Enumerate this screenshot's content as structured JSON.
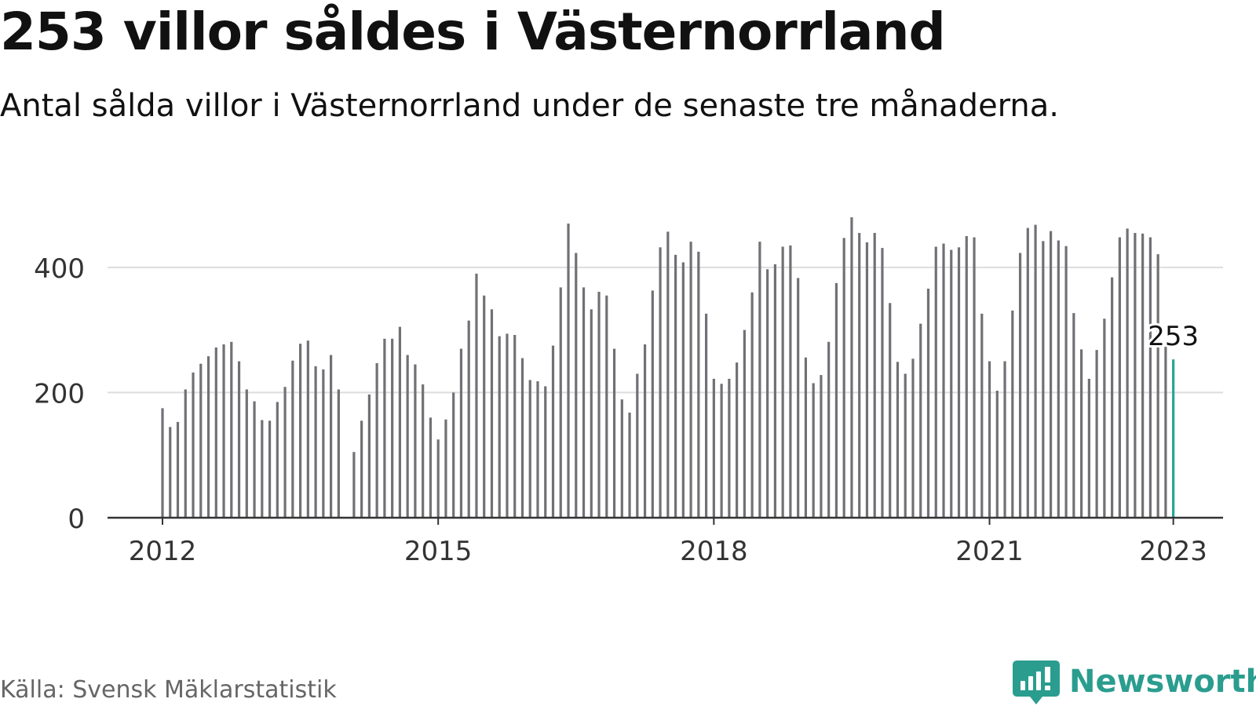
{
  "header": {
    "title": "253 villor såldes i Västernorrland",
    "subtitle": "Antal sålda villor i Västernorrland under de senaste tre månaderna."
  },
  "footer": {
    "source": "Källa: Svensk Mäklarstatistik",
    "brand": "Newsworthy"
  },
  "colors": {
    "bar": "#717075",
    "highlight": "#27a59a",
    "grid": "#dddddd",
    "axis": "#333333",
    "brand": "#2a9d8f"
  },
  "chart_data": {
    "type": "bar",
    "start_year": 2012,
    "start_month": 1,
    "yticks": [
      0,
      200,
      400
    ],
    "ylim": [
      0,
      480
    ],
    "xticks": [
      "2012",
      "2015",
      "2018",
      "2021",
      "2023"
    ],
    "grid": true,
    "highlight_label": "253",
    "values": [
      175,
      145,
      153,
      205,
      232,
      246,
      258,
      272,
      277,
      281,
      250,
      205,
      186,
      156,
      155,
      185,
      209,
      251,
      278,
      283,
      242,
      237,
      260,
      205,
      null,
      105,
      155,
      197,
      247,
      286,
      286,
      305,
      260,
      245,
      213,
      160,
      125,
      157,
      200,
      270,
      315,
      390,
      355,
      333,
      290,
      294,
      292,
      255,
      220,
      218,
      210,
      275,
      368,
      470,
      423,
      368,
      333,
      361,
      355,
      270,
      189,
      168,
      230,
      277,
      363,
      432,
      457,
      420,
      408,
      441,
      425,
      326,
      222,
      214,
      222,
      248,
      300,
      360,
      441,
      397,
      405,
      433,
      435,
      383,
      256,
      215,
      228,
      281,
      375,
      447,
      480,
      455,
      440,
      455,
      431,
      343,
      249,
      230,
      254,
      310,
      366,
      433,
      438,
      428,
      432,
      450,
      448,
      326,
      250,
      203,
      250,
      331,
      423,
      463,
      468,
      442,
      458,
      443,
      434,
      327,
      269,
      222,
      268,
      318,
      384,
      448,
      462,
      455,
      454,
      448,
      421,
      275,
      253
    ]
  }
}
